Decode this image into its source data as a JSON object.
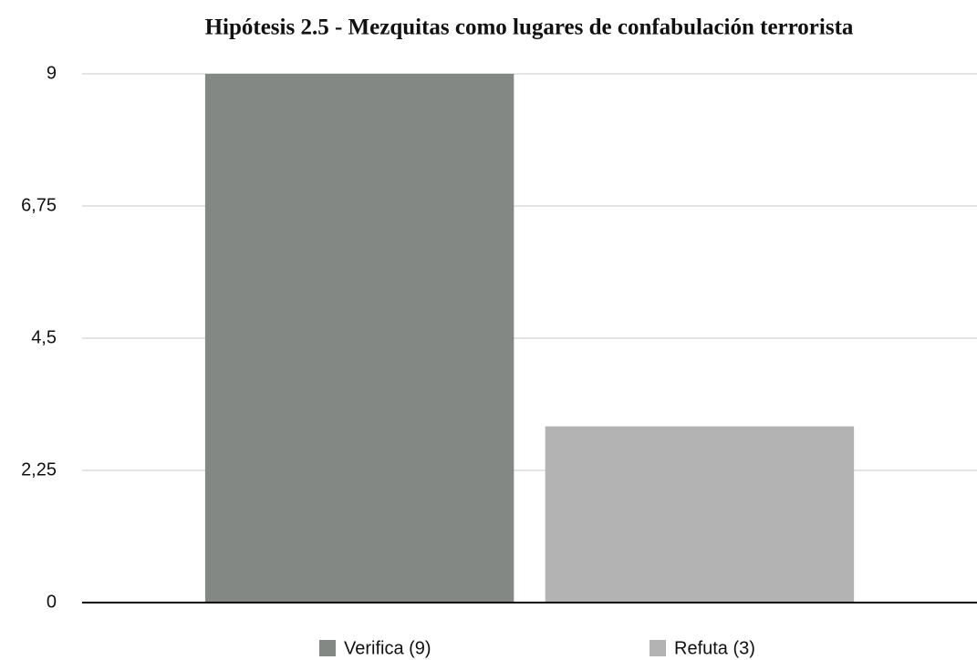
{
  "chart_data": {
    "type": "bar",
    "title": "Hipótesis 2.5 - Mezquitas como lugares de confabulación terrorista",
    "categories": [
      null
    ],
    "series": [
      {
        "name": "Verifica (9)",
        "color": "#838885",
        "values": [
          9
        ]
      },
      {
        "name": "Refuta (3)",
        "color": "#b3b3b3",
        "values": [
          3
        ]
      }
    ],
    "ylim": [
      0,
      9
    ],
    "yticks": [
      0,
      {
        "value": 2.25,
        "label": "2,25"
      },
      {
        "value": 4.5,
        "label": "4,5"
      },
      {
        "value": 6.75,
        "label": "6,75"
      },
      9
    ],
    "grid": true,
    "legend": "bottom"
  }
}
